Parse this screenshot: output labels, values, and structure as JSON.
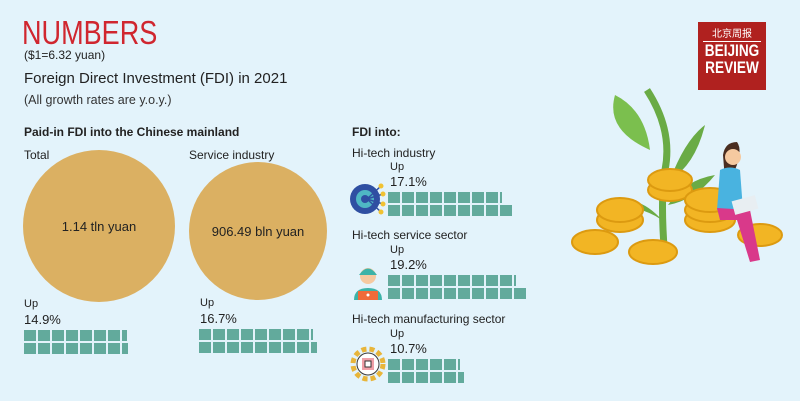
{
  "header": {
    "title": "NUMBERS",
    "exchange_rate": "($1=6.32 yuan)",
    "subtitle": "Foreign Direct Investment (FDI) in 2021",
    "note": "(All growth rates are y.o.y.)"
  },
  "logo": {
    "chinese": "北京周报",
    "line1": "BEIJING",
    "line2": "REVIEW",
    "color": "#b0211f"
  },
  "chart_data": {
    "type": "infographic",
    "paid_in": {
      "heading": "Paid-in FDI into the Chinese mainland",
      "items": [
        {
          "label": "Total",
          "amount": "1.14 tln yuan",
          "up_label": "Up",
          "growth_text": "14.9%",
          "growth": 14.9
        },
        {
          "label": "Service industry",
          "amount": "906.49 bln yuan",
          "up_label": "Up",
          "growth_text": "16.7%",
          "growth": 16.7
        }
      ]
    },
    "fdi_into": {
      "heading": "FDI into:",
      "items": [
        {
          "label": "Hi-tech industry",
          "icon": "gear-circuit-icon",
          "up_label": "Up",
          "growth_text": "17.1%",
          "growth": 17.1
        },
        {
          "label": "Hi-tech service sector",
          "icon": "support-agent-icon",
          "up_label": "Up",
          "growth_text": "19.2%",
          "growth": 19.2
        },
        {
          "label": "Hi-tech manufacturing sector",
          "icon": "gear-chip-icon",
          "up_label": "Up",
          "growth_text": "10.7%",
          "growth": 10.7
        }
      ]
    },
    "colors": {
      "circle": "#dbb062",
      "bar": "#62aa9c",
      "title": "#d0262f"
    }
  }
}
